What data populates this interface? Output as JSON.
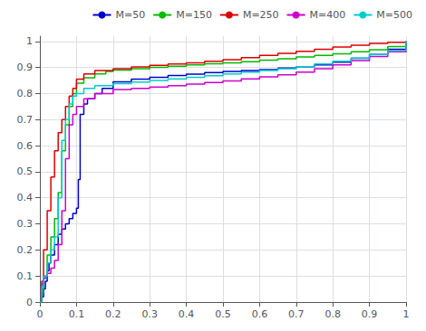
{
  "chart_data": {
    "type": "line",
    "series": [
      {
        "name": "M=50",
        "color": "#0000cc",
        "x": [
          0,
          0.005,
          0.01,
          0.015,
          0.02,
          0.025,
          0.03,
          0.04,
          0.05,
          0.06,
          0.07,
          0.08,
          0.09,
          0.1,
          0.105,
          0.11,
          0.12,
          0.13,
          0.15,
          0.17,
          0.2,
          0.25,
          0.3,
          0.35,
          0.4,
          0.45,
          0.5,
          0.55,
          0.6,
          0.65,
          0.7,
          0.75,
          0.8,
          0.85,
          0.9,
          0.95,
          1.0
        ],
        "values": [
          0,
          0.02,
          0.05,
          0.08,
          0.12,
          0.15,
          0.18,
          0.22,
          0.26,
          0.28,
          0.3,
          0.32,
          0.34,
          0.36,
          0.47,
          0.72,
          0.76,
          0.78,
          0.8,
          0.82,
          0.845,
          0.855,
          0.862,
          0.869,
          0.874,
          0.88,
          0.885,
          0.888,
          0.892,
          0.898,
          0.903,
          0.91,
          0.92,
          0.935,
          0.95,
          0.97,
          1.0
        ]
      },
      {
        "name": "M=150",
        "color": "#00bb00",
        "x": [
          0,
          0.005,
          0.01,
          0.02,
          0.03,
          0.04,
          0.05,
          0.06,
          0.07,
          0.08,
          0.09,
          0.1,
          0.12,
          0.15,
          0.18,
          0.2,
          0.25,
          0.3,
          0.35,
          0.4,
          0.45,
          0.5,
          0.55,
          0.6,
          0.65,
          0.7,
          0.75,
          0.8,
          0.85,
          0.9,
          0.95,
          1.0
        ],
        "values": [
          0,
          0.04,
          0.1,
          0.18,
          0.25,
          0.32,
          0.42,
          0.58,
          0.68,
          0.75,
          0.8,
          0.84,
          0.86,
          0.875,
          0.885,
          0.89,
          0.895,
          0.9,
          0.905,
          0.91,
          0.914,
          0.918,
          0.922,
          0.928,
          0.933,
          0.94,
          0.946,
          0.952,
          0.96,
          0.968,
          0.98,
          1.0
        ]
      },
      {
        "name": "M=250",
        "color": "#dd0000",
        "x": [
          0,
          0.005,
          0.01,
          0.02,
          0.03,
          0.04,
          0.05,
          0.06,
          0.07,
          0.08,
          0.09,
          0.1,
          0.12,
          0.15,
          0.2,
          0.25,
          0.3,
          0.35,
          0.4,
          0.45,
          0.5,
          0.55,
          0.6,
          0.65,
          0.7,
          0.75,
          0.8,
          0.85,
          0.9,
          0.95,
          1.0
        ],
        "values": [
          0,
          0.08,
          0.2,
          0.35,
          0.48,
          0.58,
          0.65,
          0.7,
          0.75,
          0.79,
          0.82,
          0.855,
          0.875,
          0.888,
          0.895,
          0.902,
          0.908,
          0.913,
          0.918,
          0.924,
          0.93,
          0.938,
          0.946,
          0.954,
          0.962,
          0.97,
          0.978,
          0.985,
          0.992,
          0.997,
          1.0
        ]
      },
      {
        "name": "M=400",
        "color": "#cc00cc",
        "x": [
          0,
          0.005,
          0.01,
          0.015,
          0.02,
          0.03,
          0.04,
          0.05,
          0.06,
          0.07,
          0.08,
          0.09,
          0.1,
          0.12,
          0.15,
          0.2,
          0.25,
          0.3,
          0.35,
          0.4,
          0.45,
          0.5,
          0.55,
          0.6,
          0.65,
          0.7,
          0.75,
          0.8,
          0.85,
          0.9,
          0.95,
          1.0
        ],
        "values": [
          0.05,
          0.07,
          0.09,
          0.1,
          0.11,
          0.13,
          0.16,
          0.22,
          0.35,
          0.55,
          0.68,
          0.72,
          0.75,
          0.78,
          0.8,
          0.815,
          0.82,
          0.825,
          0.83,
          0.836,
          0.842,
          0.848,
          0.856,
          0.864,
          0.872,
          0.882,
          0.895,
          0.91,
          0.926,
          0.942,
          0.96,
          1.0
        ]
      },
      {
        "name": "M=500",
        "color": "#00cccc",
        "x": [
          0,
          0.005,
          0.01,
          0.02,
          0.03,
          0.04,
          0.05,
          0.06,
          0.07,
          0.08,
          0.09,
          0.1,
          0.12,
          0.15,
          0.2,
          0.25,
          0.3,
          0.35,
          0.4,
          0.45,
          0.5,
          0.55,
          0.6,
          0.65,
          0.7,
          0.75,
          0.8,
          0.85,
          0.9,
          0.95,
          1.0
        ],
        "values": [
          0,
          0.06,
          0.1,
          0.15,
          0.2,
          0.25,
          0.4,
          0.62,
          0.7,
          0.76,
          0.79,
          0.8,
          0.82,
          0.83,
          0.838,
          0.844,
          0.85,
          0.856,
          0.862,
          0.868,
          0.875,
          0.882,
          0.888,
          0.895,
          0.903,
          0.913,
          0.924,
          0.936,
          0.95,
          0.965,
          1.0
        ]
      }
    ],
    "line_style": "step",
    "xlim": [
      0,
      1
    ],
    "ylim": [
      0,
      1.02
    ],
    "xticks": [
      0,
      0.1,
      0.2,
      0.3,
      0.4,
      0.5,
      0.6,
      0.7,
      0.8,
      0.9,
      1
    ],
    "yticks": [
      0,
      0.1,
      0.2,
      0.3,
      0.4,
      0.5,
      0.6,
      0.7,
      0.8,
      0.9,
      1
    ],
    "grid": true,
    "legend": "upper right"
  }
}
